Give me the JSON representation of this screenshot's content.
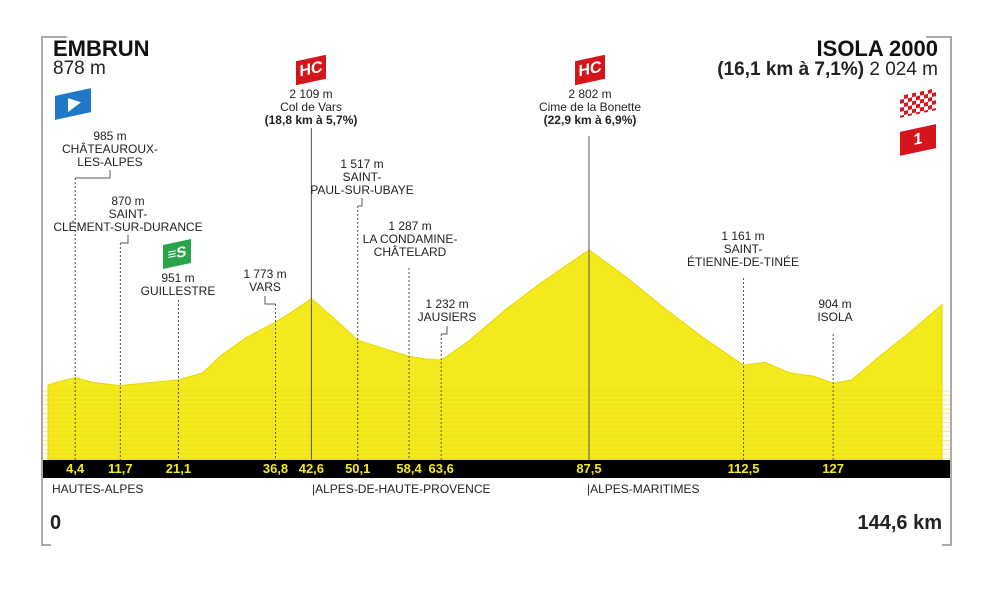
{
  "start": {
    "name": "EMBRUN",
    "altitude": "878 m",
    "icon": "start-flag-icon"
  },
  "finish": {
    "name": "ISOLA 2000",
    "climb": "(16,1 km à 7,1%)",
    "altitude": "2 024 m",
    "icons": [
      "finish-checkered-flag-icon",
      "category-1-badge"
    ],
    "category": "1"
  },
  "chart_data": {
    "type": "area",
    "xlabel": "",
    "ylabel": "",
    "xlim": [
      0,
      144.6
    ],
    "fill_color": "#f4e91c",
    "profile": [
      [
        0,
        878
      ],
      [
        2,
        930
      ],
      [
        4.4,
        985
      ],
      [
        7,
        920
      ],
      [
        11.7,
        870
      ],
      [
        15,
        900
      ],
      [
        21.1,
        951
      ],
      [
        25,
        1050
      ],
      [
        28,
        1300
      ],
      [
        32,
        1550
      ],
      [
        36.8,
        1773
      ],
      [
        40,
        1950
      ],
      [
        42.6,
        2109
      ],
      [
        46,
        1850
      ],
      [
        50.1,
        1517
      ],
      [
        55,
        1380
      ],
      [
        58.4,
        1287
      ],
      [
        61,
        1250
      ],
      [
        63.6,
        1232
      ],
      [
        68,
        1500
      ],
      [
        74,
        1950
      ],
      [
        80,
        2350
      ],
      [
        87.5,
        2802
      ],
      [
        93,
        2450
      ],
      [
        100,
        1950
      ],
      [
        106,
        1550
      ],
      [
        112.5,
        1161
      ],
      [
        116,
        1200
      ],
      [
        120,
        1050
      ],
      [
        124,
        1000
      ],
      [
        127,
        904
      ],
      [
        130,
        950
      ],
      [
        134,
        1250
      ],
      [
        139,
        1600
      ],
      [
        144.6,
        2024
      ]
    ],
    "points": [
      {
        "km": 4.4,
        "km_label": "4,4",
        "alt": "985 m",
        "name": "CHÂTEAUROUX-LES-ALPES"
      },
      {
        "km": 11.7,
        "km_label": "11,7",
        "alt": "870 m",
        "name": "SAINT-CLÉMENT-SUR-DURANCE"
      },
      {
        "km": 21.1,
        "km_label": "21,1",
        "alt": "951 m",
        "name": "GUILLESTRE",
        "badge": "S"
      },
      {
        "km": 36.8,
        "km_label": "36,8",
        "alt": "1 773 m",
        "name": "VARS"
      },
      {
        "km": 42.6,
        "km_label": "42,6",
        "alt": "2 109 m",
        "name": "Col de Vars",
        "climb": "(18,8 km à 5,7%)",
        "badge": "HC"
      },
      {
        "km": 50.1,
        "km_label": "50,1",
        "alt": "1 517 m",
        "name": "SAINT-PAUL-SUR-UBAYE"
      },
      {
        "km": 58.4,
        "km_label": "58,4",
        "alt": "1 287 m",
        "name": "LA CONDAMINE-CHÂTELARD"
      },
      {
        "km": 63.6,
        "km_label": "63,6",
        "alt": "1 232 m",
        "name": "JAUSIERS"
      },
      {
        "km": 87.5,
        "km_label": "87,5",
        "alt": "2 802 m",
        "name": "Cime de la Bonette",
        "climb": "(22,9 km à 6,9%)",
        "badge": "HC"
      },
      {
        "km": 112.5,
        "km_label": "112,5",
        "alt": "1 161 m",
        "name": "SAINT-ÉTIENNE-DE-TINÉE"
      },
      {
        "km": 127,
        "km_label": "127",
        "alt": "904 m",
        "name": "ISOLA"
      }
    ],
    "regions": [
      "HAUTES-ALPES",
      "ALPES-DE-HAUTE-PROVENCE",
      "ALPES-MARITIMES"
    ],
    "km_start": "0",
    "km_end": "144,6 km"
  }
}
